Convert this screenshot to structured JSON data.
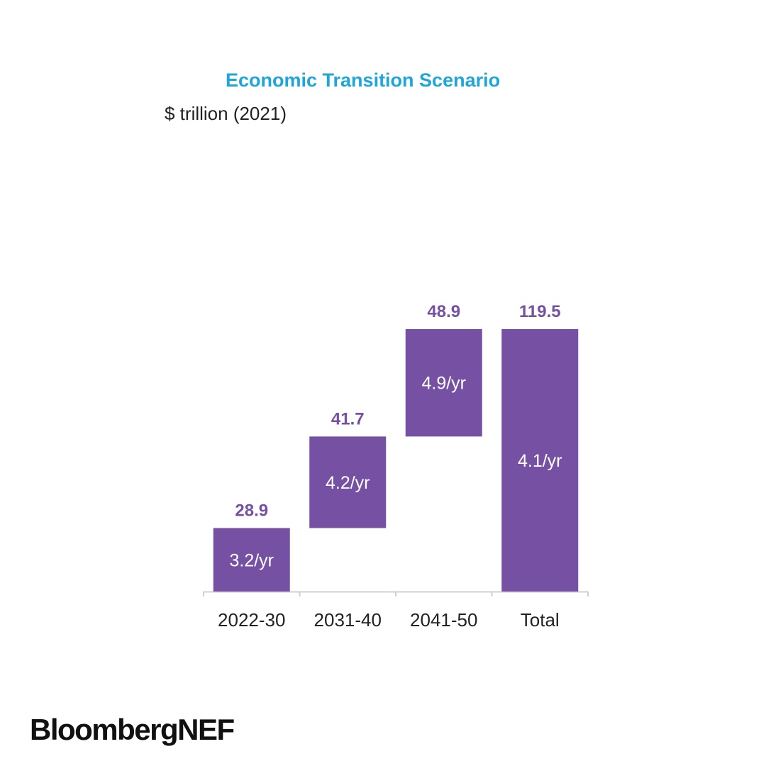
{
  "header": {
    "title": "Economic Transition Scenario",
    "unit": "$ trillion (2021)"
  },
  "footer": {
    "brand": "BloombergNEF"
  },
  "colors": {
    "bar": "#7650a3",
    "value_label": "#7650a3",
    "inner_label": "#ffffff",
    "axis": "#d0d0d0",
    "tick_label": "#222222",
    "title": "#1fa6d8"
  },
  "chart_data": {
    "type": "bar",
    "subtype": "waterfall",
    "title": "Economic Transition Scenario",
    "ylabel": "$ trillion (2021)",
    "categories": [
      "2022-30",
      "2031-40",
      "2041-50",
      "Total"
    ],
    "values": [
      28.9,
      41.7,
      48.9,
      119.5
    ],
    "value_labels": [
      "28.9",
      "41.7",
      "48.9",
      "119.5"
    ],
    "inner_labels": [
      "3.2/yr",
      "4.2/yr",
      "4.9/yr",
      "4.1/yr"
    ],
    "is_total": [
      false,
      false,
      false,
      true
    ],
    "ylim": [
      0,
      119.5
    ],
    "grid": false,
    "legend": "none"
  }
}
